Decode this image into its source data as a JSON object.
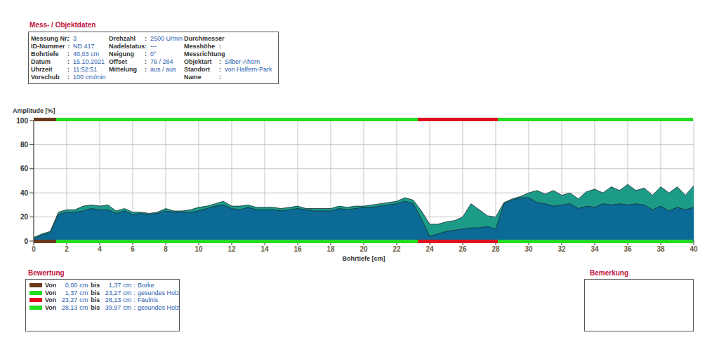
{
  "header": {
    "title": "Mess- / Objektdaten",
    "separator": ":",
    "columns": [
      [
        {
          "label": "Messung Nr.",
          "value": "3"
        },
        {
          "label": "ID-Nummer",
          "value": "ND 417"
        },
        {
          "label": "Bohrtiefe",
          "value": "40,03 cm"
        },
        {
          "label": "Datum",
          "value": "15.10.2021"
        },
        {
          "label": "Uhrzeit",
          "value": "11:52:51"
        },
        {
          "label": "Vorschub",
          "value": "100 cm/min"
        }
      ],
      [
        {
          "label": "Drehzahl",
          "value": "2500 U/min"
        },
        {
          "label": "Nadelstatus",
          "value": "---"
        },
        {
          "label": "Neigung",
          "value": "0°"
        },
        {
          "label": "Offset",
          "value": "76 / 284"
        },
        {
          "label": "Mittelung",
          "value": "aus / aus"
        }
      ],
      [
        {
          "label": "Durchmesser"
        },
        {
          "label": "Messhöhe"
        },
        {
          "label": "Messrichtung"
        },
        {
          "label": "Objektart",
          "value": "Silber-Ahorn"
        },
        {
          "label": "Standort",
          "value": "von Halfern-Park"
        },
        {
          "label": "Name"
        }
      ]
    ]
  },
  "chart_data": {
    "type": "area",
    "y_label": "Amplitude [%]",
    "x_label": "Bohrtiefe [cm]",
    "xlim": [
      0,
      40
    ],
    "xticks": [
      0,
      2,
      4,
      6,
      8,
      10,
      12,
      14,
      16,
      18,
      20,
      22,
      24,
      26,
      28,
      30,
      32,
      34,
      36,
      38,
      40
    ],
    "ylim": [
      0,
      100
    ],
    "yticks": [
      0,
      20,
      40,
      60,
      80,
      100
    ],
    "grid": true,
    "x": [
      0,
      0.5,
      1,
      1.5,
      2,
      2.5,
      3,
      3.5,
      4,
      4.5,
      5,
      5.5,
      6,
      6.5,
      7,
      7.5,
      8,
      8.5,
      9,
      9.5,
      10,
      10.5,
      11,
      11.5,
      12,
      12.5,
      13,
      13.5,
      14,
      14.5,
      15,
      15.5,
      16,
      16.5,
      17,
      17.5,
      18,
      18.5,
      19,
      19.5,
      20,
      20.5,
      21,
      21.5,
      22,
      22.5,
      23,
      23.5,
      24,
      24.5,
      25,
      25.5,
      26,
      26.5,
      27,
      27.5,
      28,
      28.5,
      29,
      29.5,
      30,
      30.5,
      31,
      31.5,
      32,
      32.5,
      33,
      33.5,
      34,
      34.5,
      35,
      35.5,
      36,
      36.5,
      37,
      37.5,
      38,
      38.5,
      39,
      39.5,
      40
    ],
    "series": [
      {
        "color": "#1c9c88",
        "values": [
          3,
          6,
          8,
          24,
          26,
          26,
          29,
          30,
          29,
          30,
          25,
          27,
          24,
          24,
          23,
          24,
          27,
          25,
          25,
          26,
          28,
          29,
          31,
          33,
          29,
          29,
          30,
          28,
          28,
          28,
          27,
          28,
          29,
          27,
          27,
          27,
          27,
          29,
          28,
          29,
          29,
          30,
          31,
          32,
          33,
          36,
          34,
          25,
          14,
          14,
          16,
          17,
          20,
          31,
          26,
          21,
          20,
          32,
          35,
          37,
          40,
          42,
          39,
          42,
          38,
          40,
          35,
          41,
          43,
          40,
          45,
          42,
          47,
          42,
          44,
          38,
          45,
          40,
          45,
          38,
          46
        ]
      },
      {
        "color": "#0b6a96",
        "values": [
          2,
          5,
          7,
          22,
          24,
          24,
          25,
          27,
          26,
          26,
          23,
          25,
          22,
          23,
          22,
          23,
          25,
          24,
          24,
          24,
          25,
          27,
          29,
          30,
          27,
          26,
          28,
          26,
          26,
          26,
          25,
          26,
          27,
          26,
          25,
          25,
          25,
          27,
          26,
          27,
          28,
          28,
          29,
          30,
          31,
          33,
          31,
          18,
          4,
          6,
          8,
          9,
          10,
          11,
          11,
          12,
          10,
          31,
          34,
          36,
          36,
          32,
          31,
          29,
          30,
          31,
          27,
          29,
          28,
          31,
          30,
          31,
          30,
          31,
          30,
          26,
          29,
          25,
          28,
          26,
          28
        ]
      }
    ]
  },
  "bewertung": {
    "title": "Bewertung",
    "from_word": "Von",
    "to_word": "bis",
    "unit": "cm",
    "separator": ":",
    "segments": [
      {
        "from": {
          "value": 0,
          "label": "0,00"
        },
        "to": {
          "value": 1.37,
          "label": "1,37"
        },
        "label": "Borke",
        "color": "#6b3a1a"
      },
      {
        "from": {
          "value": 1.37,
          "label": "1,37"
        },
        "to": {
          "value": 23.27,
          "label": "23,27"
        },
        "label": "gesundes Holz",
        "color": "#22dd22"
      },
      {
        "from": {
          "value": 23.27,
          "label": "23,27"
        },
        "to": {
          "value": 28.13,
          "label": "28,13"
        },
        "label": "Fäulnis",
        "color": "#e01020"
      },
      {
        "from": {
          "value": 28.13,
          "label": "28,13"
        },
        "to": {
          "value": 39.97,
          "label": "39,97"
        },
        "label": "gesundes Holz",
        "color": "#22dd22"
      }
    ]
  },
  "bemerkung": {
    "title": "Bemerkung"
  }
}
